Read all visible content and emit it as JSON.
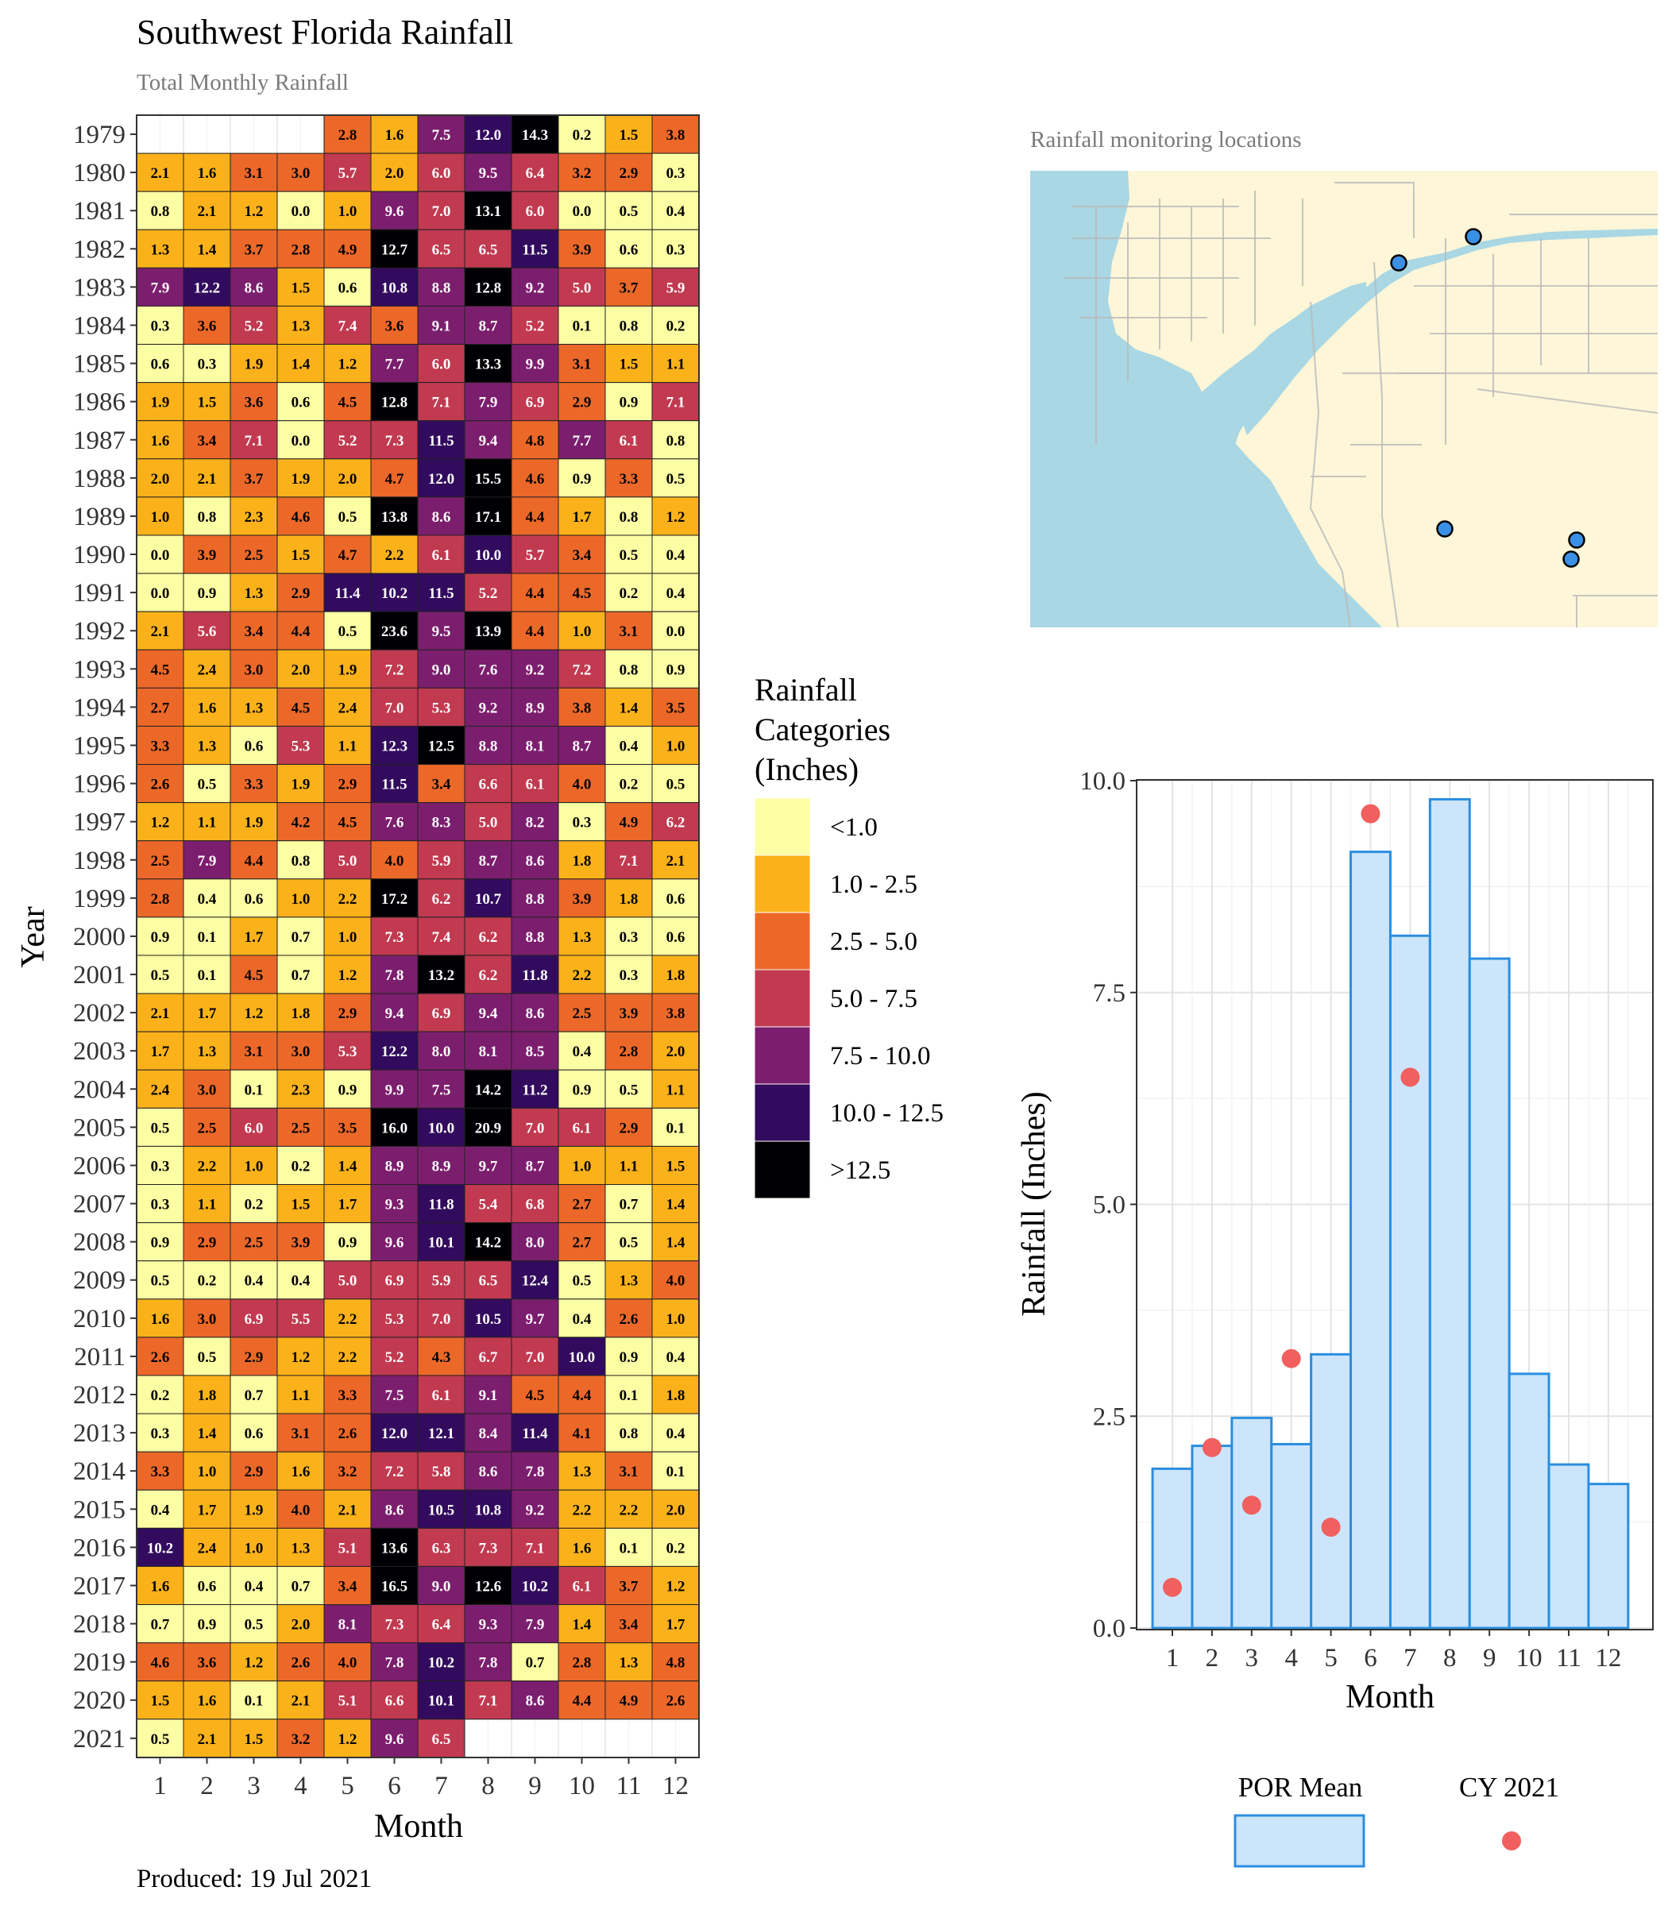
{
  "header": {
    "title": "Southwest Florida Rainfall",
    "subtitle": "Total Monthly Rainfall",
    "produced": "Produced: 19 Jul 2021"
  },
  "map": {
    "caption": "Rainfall monitoring locations",
    "colors": {
      "land": "#fdf6d8",
      "water": "#a9d7e4",
      "roads": "#b9b9b9",
      "stations": "#3a8fe6"
    },
    "station_count": 5
  },
  "legend": {
    "title_lines": [
      "Rainfall",
      "Categories",
      "(Inches)"
    ],
    "categories": [
      {
        "label": "<1.0",
        "color": "#fcfea4"
      },
      {
        "label": "1.0 - 2.5",
        "color": "#fbb21a"
      },
      {
        "label": "2.5 - 5.0",
        "color": "#ec6829"
      },
      {
        "label": "5.0 - 7.5",
        "color": "#c13a50"
      },
      {
        "label": "7.5 - 10.0",
        "color": "#7c1e6e"
      },
      {
        "label": "10.0 - 12.5",
        "color": "#320b5e"
      },
      {
        "label": ">12.5",
        "color": "#000004"
      }
    ],
    "breaks": [
      1.0,
      2.5,
      5.0,
      7.5,
      10.0,
      12.5
    ]
  },
  "chart_data": [
    {
      "type": "heatmap",
      "xlabel": "Month",
      "ylabel": "Year",
      "months": [
        "1",
        "2",
        "3",
        "4",
        "5",
        "6",
        "7",
        "8",
        "9",
        "10",
        "11",
        "12"
      ],
      "years": [
        "1979",
        "1980",
        "1981",
        "1982",
        "1983",
        "1984",
        "1985",
        "1986",
        "1987",
        "1988",
        "1989",
        "1990",
        "1991",
        "1992",
        "1993",
        "1994",
        "1995",
        "1996",
        "1997",
        "1998",
        "1999",
        "2000",
        "2001",
        "2002",
        "2003",
        "2004",
        "2005",
        "2006",
        "2007",
        "2008",
        "2009",
        "2010",
        "2011",
        "2012",
        "2013",
        "2014",
        "2015",
        "2016",
        "2017",
        "2018",
        "2019",
        "2020",
        "2021"
      ],
      "values": [
        [
          null,
          null,
          null,
          null,
          2.8,
          1.6,
          7.5,
          12.0,
          14.3,
          0.2,
          1.5,
          3.8
        ],
        [
          2.1,
          1.6,
          3.1,
          3.0,
          5.7,
          2.0,
          6.0,
          9.5,
          6.4,
          3.2,
          2.9,
          0.3
        ],
        [
          0.8,
          2.1,
          1.2,
          0.0,
          1.0,
          9.6,
          7.0,
          13.1,
          6.0,
          0.0,
          0.5,
          0.4
        ],
        [
          1.3,
          1.4,
          3.7,
          2.8,
          4.9,
          12.7,
          6.5,
          6.5,
          11.5,
          3.9,
          0.6,
          0.3
        ],
        [
          7.9,
          12.2,
          8.6,
          1.5,
          0.6,
          10.8,
          8.8,
          12.8,
          9.2,
          5.0,
          3.7,
          5.9
        ],
        [
          0.3,
          3.6,
          5.2,
          1.3,
          7.4,
          3.6,
          9.1,
          8.7,
          5.2,
          0.1,
          0.8,
          0.2
        ],
        [
          0.6,
          0.3,
          1.9,
          1.4,
          1.2,
          7.7,
          6.0,
          13.3,
          9.9,
          3.1,
          1.5,
          1.1
        ],
        [
          1.9,
          1.5,
          3.6,
          0.6,
          4.5,
          12.8,
          7.1,
          7.9,
          6.9,
          2.9,
          0.9,
          7.1
        ],
        [
          1.6,
          3.4,
          7.1,
          0.0,
          5.2,
          7.3,
          11.5,
          9.4,
          4.8,
          7.7,
          6.1,
          0.8
        ],
        [
          2.0,
          2.1,
          3.7,
          1.9,
          2.0,
          4.7,
          12.0,
          15.5,
          4.6,
          0.9,
          3.3,
          0.5
        ],
        [
          1.0,
          0.8,
          2.3,
          4.6,
          0.5,
          13.8,
          8.6,
          17.1,
          4.4,
          1.7,
          0.8,
          1.2
        ],
        [
          0.0,
          3.9,
          2.5,
          1.5,
          4.7,
          2.2,
          6.1,
          10.0,
          5.7,
          3.4,
          0.5,
          0.4
        ],
        [
          0.0,
          0.9,
          1.3,
          2.9,
          11.4,
          10.2,
          11.5,
          5.2,
          4.4,
          4.5,
          0.2,
          0.4
        ],
        [
          2.1,
          5.6,
          3.4,
          4.4,
          0.5,
          23.6,
          9.5,
          13.9,
          4.4,
          1.0,
          3.1,
          0.0
        ],
        [
          4.5,
          2.4,
          3.0,
          2.0,
          1.9,
          7.2,
          9.0,
          7.6,
          9.2,
          7.2,
          0.8,
          0.9
        ],
        [
          2.7,
          1.6,
          1.3,
          4.5,
          2.4,
          7.0,
          5.3,
          9.2,
          8.9,
          3.8,
          1.4,
          3.5
        ],
        [
          3.3,
          1.3,
          0.6,
          5.3,
          1.1,
          12.3,
          12.5,
          8.8,
          8.1,
          8.7,
          0.4,
          1.0
        ],
        [
          2.6,
          0.5,
          3.3,
          1.9,
          2.9,
          11.5,
          3.4,
          6.6,
          6.1,
          4.0,
          0.2,
          0.5
        ],
        [
          1.2,
          1.1,
          1.9,
          4.2,
          4.5,
          7.6,
          8.3,
          5.0,
          8.2,
          0.3,
          4.9,
          6.2
        ],
        [
          2.5,
          7.9,
          4.4,
          0.8,
          5.0,
          4.0,
          5.9,
          8.7,
          8.6,
          1.8,
          7.1,
          2.1
        ],
        [
          2.8,
          0.4,
          0.6,
          1.0,
          2.2,
          17.2,
          6.2,
          10.7,
          8.8,
          3.9,
          1.8,
          0.6
        ],
        [
          0.9,
          0.1,
          1.7,
          0.7,
          1.0,
          7.3,
          7.4,
          6.2,
          8.8,
          1.3,
          0.3,
          0.6
        ],
        [
          0.5,
          0.1,
          4.5,
          0.7,
          1.2,
          7.8,
          13.2,
          6.2,
          11.8,
          2.2,
          0.3,
          1.8
        ],
        [
          2.1,
          1.7,
          1.2,
          1.8,
          2.9,
          9.4,
          6.9,
          9.4,
          8.6,
          2.5,
          3.9,
          3.8
        ],
        [
          1.7,
          1.3,
          3.1,
          3.0,
          5.3,
          12.2,
          8.0,
          8.1,
          8.5,
          0.4,
          2.8,
          2.0
        ],
        [
          2.4,
          3.0,
          0.1,
          2.3,
          0.9,
          9.9,
          7.5,
          14.2,
          11.2,
          0.9,
          0.5,
          1.1
        ],
        [
          0.5,
          2.5,
          6.0,
          2.5,
          3.5,
          16.0,
          10.0,
          20.9,
          7.0,
          6.1,
          2.9,
          0.1
        ],
        [
          0.3,
          2.2,
          1.0,
          0.2,
          1.4,
          8.9,
          8.9,
          9.7,
          8.7,
          1.0,
          1.1,
          1.5
        ],
        [
          0.3,
          1.1,
          0.2,
          1.5,
          1.7,
          9.3,
          11.8,
          5.4,
          6.8,
          2.7,
          0.7,
          1.4
        ],
        [
          0.9,
          2.9,
          2.5,
          3.9,
          0.9,
          9.6,
          10.1,
          14.2,
          8.0,
          2.7,
          0.5,
          1.4
        ],
        [
          0.5,
          0.2,
          0.4,
          0.4,
          5.0,
          6.9,
          5.9,
          6.5,
          12.4,
          0.5,
          1.3,
          4.0
        ],
        [
          1.6,
          3.0,
          6.9,
          5.5,
          2.2,
          5.3,
          7.0,
          10.5,
          9.7,
          0.4,
          2.6,
          1.0
        ],
        [
          2.6,
          0.5,
          2.9,
          1.2,
          2.2,
          5.2,
          4.3,
          6.7,
          7.0,
          10.0,
          0.9,
          0.4
        ],
        [
          0.2,
          1.8,
          0.7,
          1.1,
          3.3,
          7.5,
          6.1,
          9.1,
          4.5,
          4.4,
          0.1,
          1.8
        ],
        [
          0.3,
          1.4,
          0.6,
          3.1,
          2.6,
          12.0,
          12.1,
          8.4,
          11.4,
          4.1,
          0.8,
          0.4
        ],
        [
          3.3,
          1.0,
          2.9,
          1.6,
          3.2,
          7.2,
          5.8,
          8.6,
          7.8,
          1.3,
          3.1,
          0.1
        ],
        [
          0.4,
          1.7,
          1.9,
          4.0,
          2.1,
          8.6,
          10.5,
          10.8,
          9.2,
          2.2,
          2.2,
          2.0
        ],
        [
          10.2,
          2.4,
          1.0,
          1.3,
          5.1,
          13.6,
          6.3,
          7.3,
          7.1,
          1.6,
          0.1,
          0.2
        ],
        [
          1.6,
          0.6,
          0.4,
          0.7,
          3.4,
          16.5,
          9.0,
          12.6,
          10.2,
          6.1,
          3.7,
          1.2
        ],
        [
          0.7,
          0.9,
          0.5,
          2.0,
          8.1,
          7.3,
          6.4,
          9.3,
          7.9,
          1.4,
          3.4,
          1.7
        ],
        [
          4.6,
          3.6,
          1.2,
          2.6,
          4.0,
          7.8,
          10.2,
          7.8,
          0.7,
          2.8,
          1.3,
          4.8
        ],
        [
          1.5,
          1.6,
          0.1,
          2.1,
          5.1,
          6.6,
          10.1,
          7.1,
          8.6,
          4.4,
          4.9,
          2.6
        ],
        [
          0.5,
          2.1,
          1.5,
          3.2,
          1.2,
          9.6,
          6.5,
          null,
          null,
          null,
          null,
          null
        ]
      ]
    },
    {
      "type": "bar",
      "xlabel": "Month",
      "ylabel": "Rainfall (Inches)",
      "ylim": [
        0,
        10.0
      ],
      "yticks": [
        "0.0",
        "2.5",
        "5.0",
        "7.5",
        "10.0"
      ],
      "categories": [
        "1",
        "2",
        "3",
        "4",
        "5",
        "6",
        "7",
        "8",
        "9",
        "10",
        "11",
        "12"
      ],
      "series": [
        {
          "name": "POR Mean",
          "kind": "bar",
          "color": "#cce5fb",
          "stroke": "#2b8ee0",
          "values": [
            1.88,
            2.15,
            2.48,
            2.17,
            3.23,
            9.16,
            8.17,
            9.78,
            7.9,
            3.0,
            1.93,
            1.7
          ]
        },
        {
          "name": "CY 2021",
          "kind": "point",
          "color": "#f15f5f",
          "values": [
            0.48,
            2.13,
            1.45,
            3.18,
            1.19,
            9.61,
            6.5,
            null,
            null,
            null,
            null,
            null
          ]
        }
      ]
    }
  ]
}
